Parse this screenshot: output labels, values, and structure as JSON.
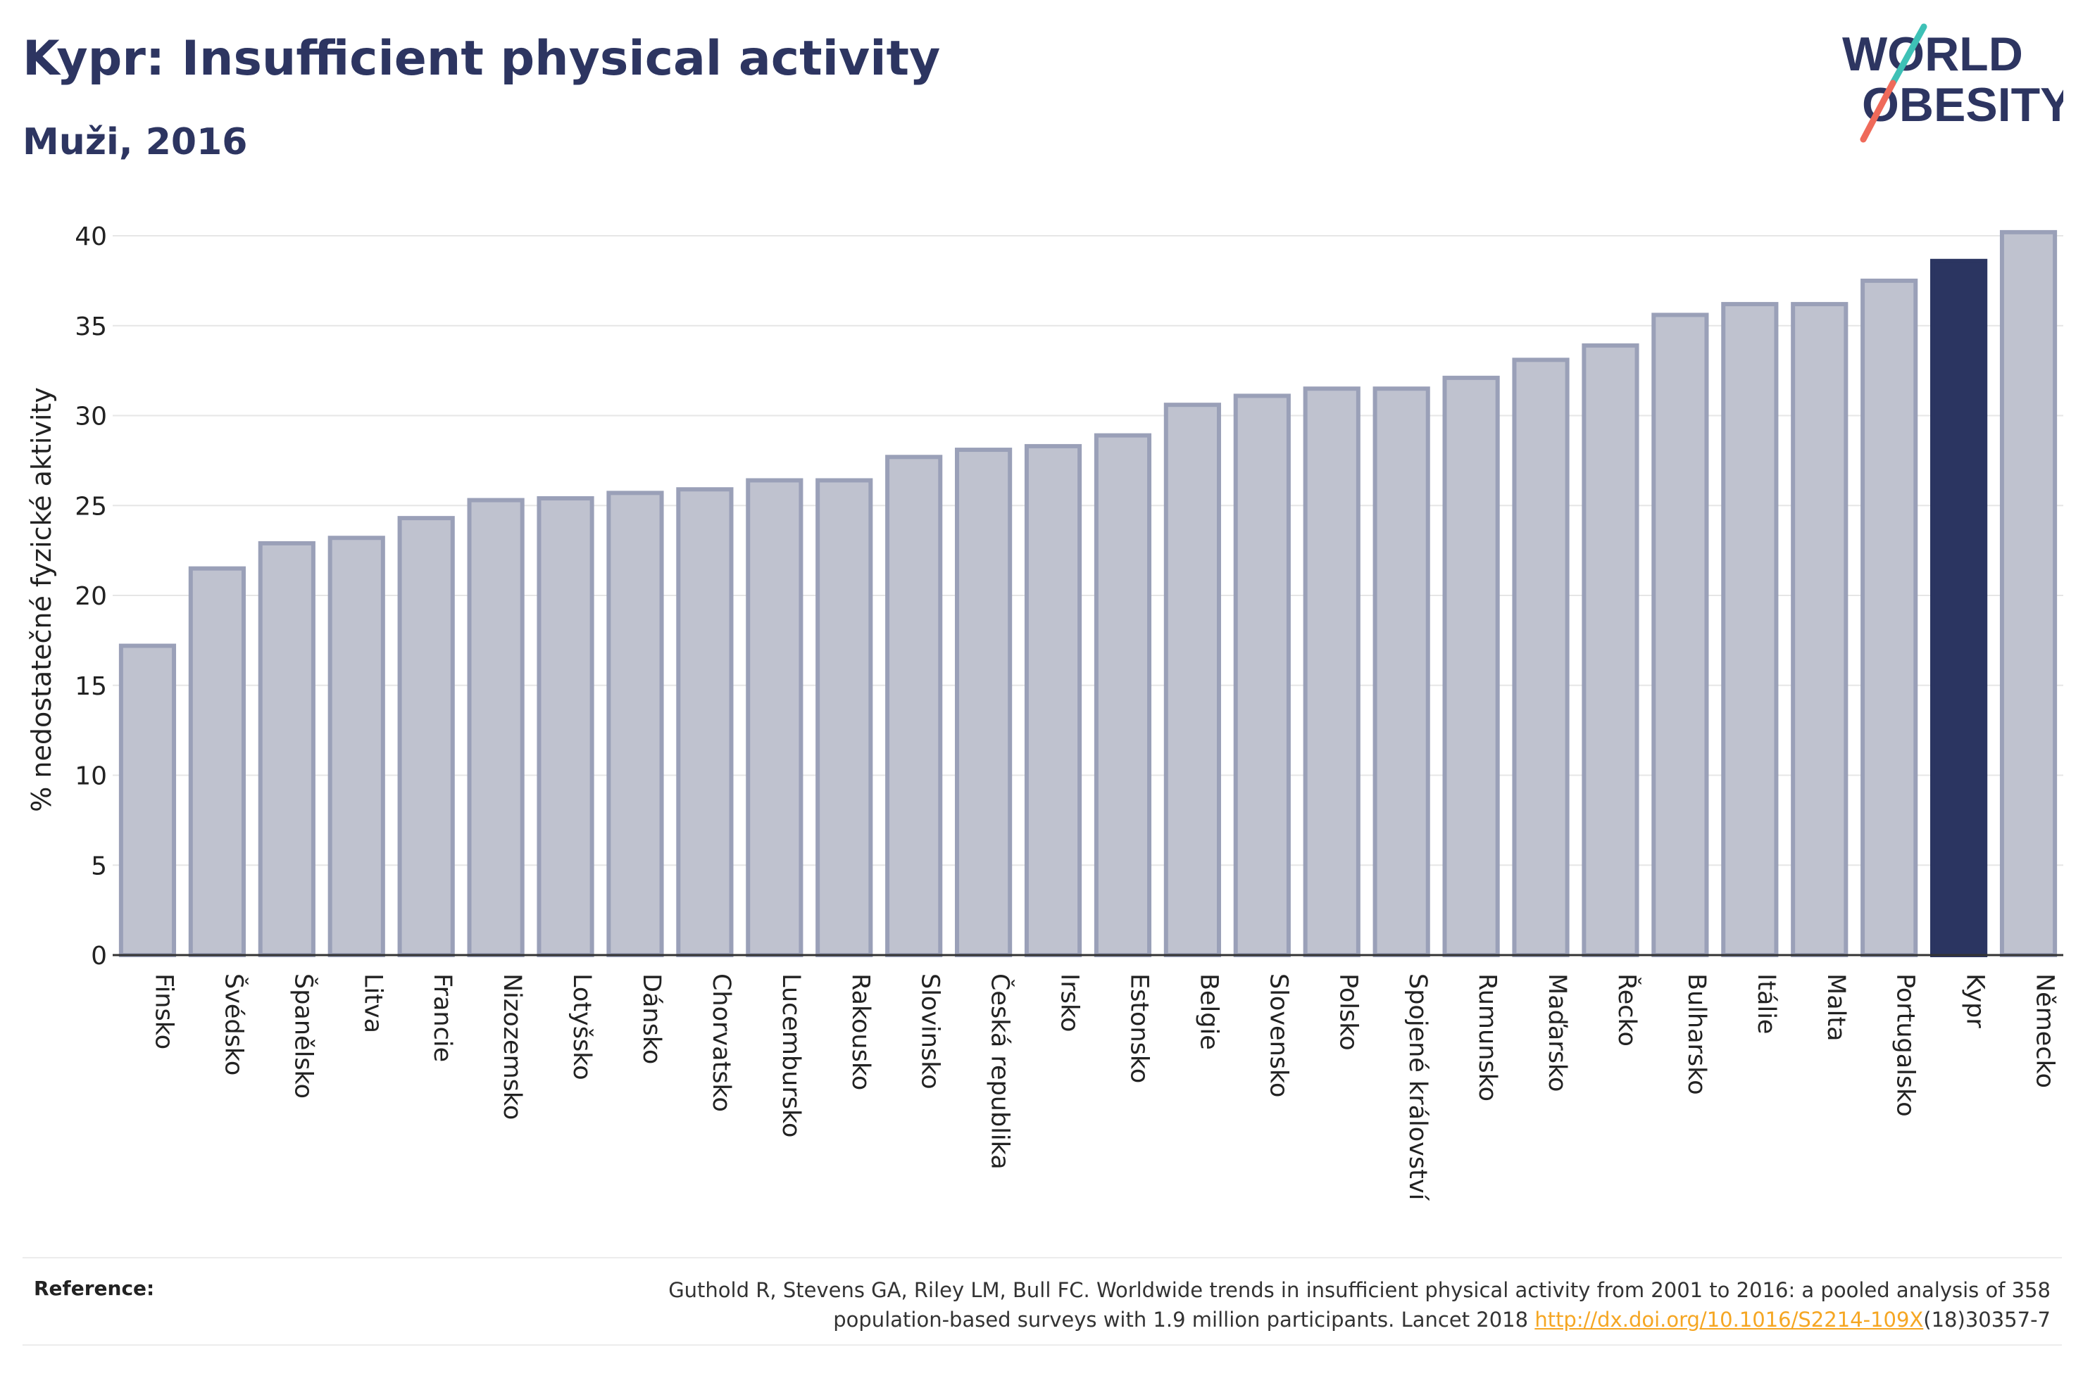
{
  "title": "Kypr: Insufficient physical activity",
  "subtitle": "Muži, 2016",
  "logo": {
    "line1": "WORLD",
    "line2": "OBESITY",
    "text_color": "#2d3561",
    "slash_colors": [
      "#3ec1b6",
      "#ef6a5a"
    ]
  },
  "reference": {
    "label": "Reference:",
    "text_line1": "Guthold R, Stevens GA, Riley LM, Bull FC. Worldwide trends in insufficient physical activity from 2001 to 2016: a pooled analysis of 358",
    "text_line2_before": "population-based surveys with 1.9 million participants. Lancet 2018 ",
    "link": "http://dx.doi.org/10.1016/S2214-109X",
    "text_line2_after": "(18)30357-7"
  },
  "chart_data": {
    "type": "bar",
    "title": "Kypr: Insufficient physical activity",
    "subtitle": "Muži, 2016",
    "xlabel": "",
    "ylabel": "% nedostatečné fyzické aktivity",
    "ylim": [
      0,
      40
    ],
    "yticks": [
      0,
      5,
      10,
      15,
      20,
      25,
      30,
      35,
      40
    ],
    "grid": true,
    "legend": "none",
    "highlight": "Kypr",
    "colors": {
      "bar": "#bfc2cf",
      "bar_border": "#9aa0b8",
      "highlight": "#2b3561",
      "grid": "#e6e6e6",
      "axis": "#333333"
    },
    "categories": [
      "Finsko",
      "Švédsko",
      "Španělsko",
      "Litva",
      "Francie",
      "Nizozemsko",
      "Lotyšsko",
      "Dánsko",
      "Chorvatsko",
      "Lucembursko",
      "Rakousko",
      "Slovinsko",
      "Česká republika",
      "Irsko",
      "Estonsko",
      "Belgie",
      "Slovensko",
      "Polsko",
      "Spojené království",
      "Rumunsko",
      "Maďarsko",
      "Řecko",
      "Bulharsko",
      "Itálie",
      "Malta",
      "Portugalsko",
      "Kypr",
      "Německo"
    ],
    "values": [
      17.2,
      21.5,
      22.9,
      23.2,
      24.3,
      25.3,
      25.4,
      25.7,
      25.9,
      26.4,
      26.4,
      27.7,
      28.1,
      28.3,
      28.9,
      30.6,
      31.1,
      31.5,
      31.5,
      32.1,
      33.1,
      33.9,
      35.6,
      36.2,
      36.2,
      37.5,
      38.6,
      40.2
    ]
  }
}
